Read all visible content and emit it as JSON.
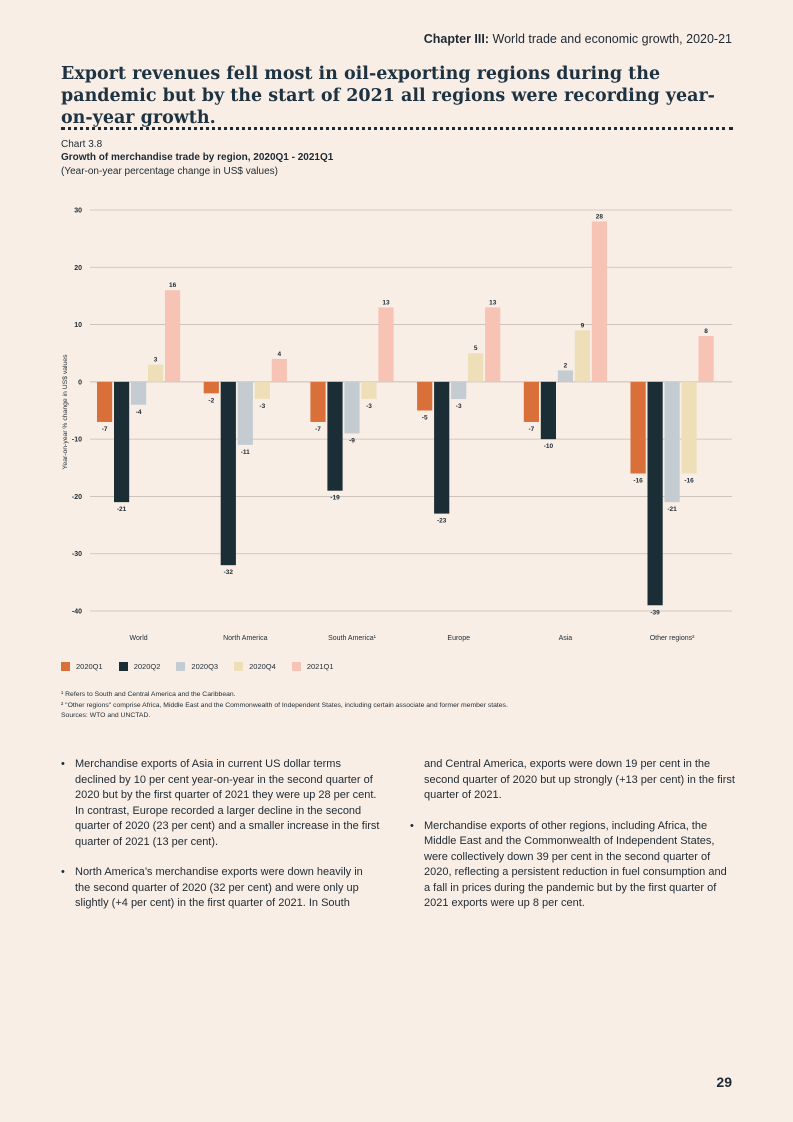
{
  "header": {
    "chapter_bold": "Chapter III:",
    "chapter_text": " World trade and economic growth, 2020-21"
  },
  "heading": "Export revenues fell most in oil-exporting regions during the pandemic but by the start of 2021 all regions were recording year-on-year growth.",
  "chart_meta": {
    "number": "Chart 3.8",
    "title": "Growth of merchandise trade by region, 2020Q1 - 2021Q1",
    "subtitle": "(Year-on-year percentage change in US$ values)"
  },
  "colors": [
    "#d9703a",
    "#1b2e35",
    "#c4ccd2",
    "#eedfb9",
    "#f6c3b5"
  ],
  "chart_data": {
    "type": "bar",
    "categories": [
      "World",
      "North America",
      "South America¹",
      "Europe",
      "Asia",
      "Other regions²"
    ],
    "series": [
      {
        "name": "2020Q1",
        "values": [
          -7,
          -2,
          -7,
          -5,
          -7,
          -16
        ]
      },
      {
        "name": "2020Q2",
        "values": [
          -21,
          -32,
          -19,
          -23,
          -10,
          -39
        ]
      },
      {
        "name": "2020Q3",
        "values": [
          -4,
          -11,
          -9,
          -3,
          2,
          -21
        ]
      },
      {
        "name": "2020Q4",
        "values": [
          3,
          -3,
          -3,
          5,
          9,
          -16
        ]
      },
      {
        "name": "2021Q1",
        "values": [
          16,
          4,
          13,
          13,
          28,
          8
        ]
      }
    ],
    "ylabel": "Year-on-year % change in US$ values",
    "ylim": [
      -40,
      30
    ],
    "yticks": [
      30,
      20,
      10,
      0,
      -10,
      -20,
      -30,
      -40
    ],
    "grid": true,
    "legend_position": "bottom-left"
  },
  "notes": {
    "note1": "¹ Refers to South and Central America and the Caribbean.",
    "note2": "² \"Other regions\" comprise Africa, Middle East and the Commonwealth of Independent States, including certain associate and former member states.",
    "sources": "Sources: WTO and UNCTAD."
  },
  "body": {
    "p1": "Merchandise exports of Asia in current US dollar terms declined by 10 per cent year-on-year in the second quarter of 2020 but by the first quarter of 2021 they were up 28 per cent. In contrast, Europe recorded a larger decline in the second quarter of 2020 (23 per cent) and a smaller increase in the first quarter of 2021 (13 per cent).",
    "p2": "North America’s merchandise exports were down heavily in the second quarter of 2020 (32 per cent) and were only up slightly (+4 per cent) in the first quarter of 2021. In South",
    "p2_cont": "and Central America, exports were down 19 per cent in the second quarter of 2020 but up strongly (+13 per cent) in the first quarter of 2021.",
    "p3": "Merchandise exports of other regions, including Africa, the Middle East and the Commonwealth of Independent States, were collectively down 39 per cent in the second quarter of 2020, reflecting a persistent reduction in fuel consumption and a fall in prices during the pandemic but by the first quarter of 2021 exports were up 8 per cent."
  },
  "page_number": "29"
}
